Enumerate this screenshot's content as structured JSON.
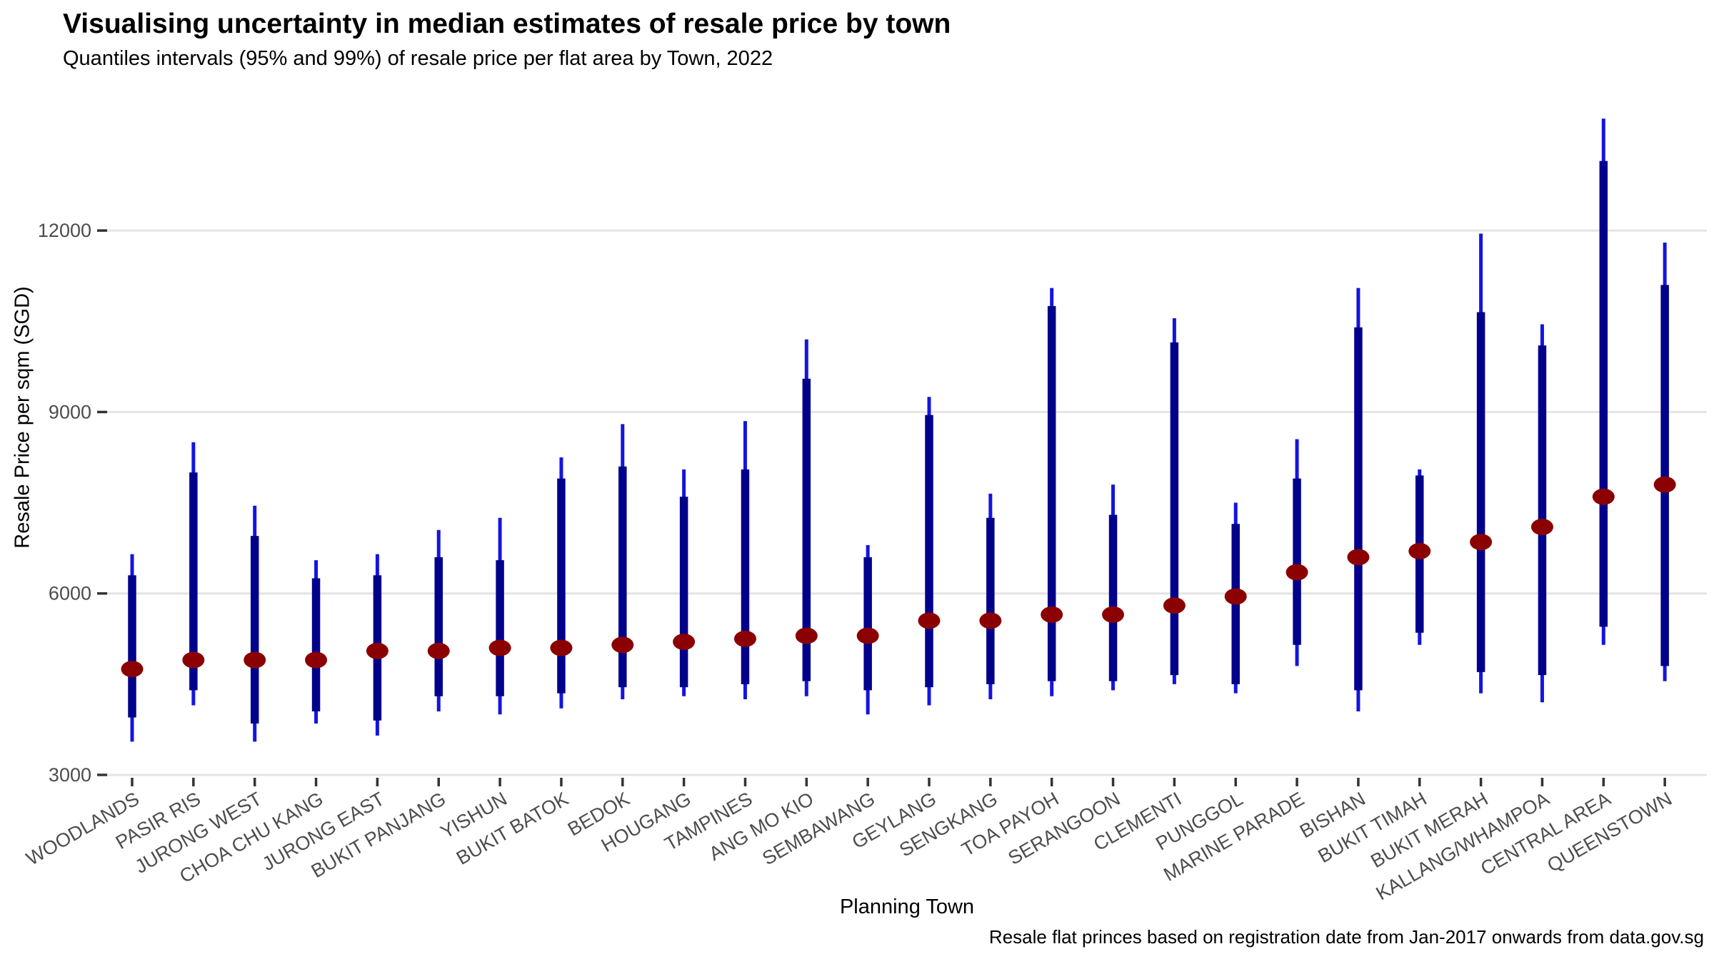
{
  "header": {
    "title": "Visualising uncertainty in median estimates of resale price by town",
    "subtitle": "Quantiles intervals (95% and 99%) of resale price per flat area by Town, 2022"
  },
  "caption": "Resale flat princes based on registration date from Jan-2017 onwards from data.gov.sg",
  "chart_data": {
    "type": "pointrange",
    "title": "Visualising uncertainty in median estimates of resale price by town",
    "subtitle": "Quantiles intervals (95% and 99%) of resale price per flat area by Town, 2022",
    "xlabel": "Planning Town",
    "ylabel": "Resale Price per sqm (SGD)",
    "legend": "none",
    "grid": "horizontal-only",
    "y_ticks": [
      3000,
      6000,
      9000,
      12000
    ],
    "ylim": [
      3000,
      14200
    ],
    "categories": [
      "WOODLANDS",
      "PASIR RIS",
      "JURONG WEST",
      "CHOA CHU KANG",
      "JURONG EAST",
      "BUKIT PANJANG",
      "YISHUN",
      "BUKIT BATOK",
      "BEDOK",
      "HOUGANG",
      "TAMPINES",
      "ANG MO KIO",
      "SEMBAWANG",
      "GEYLANG",
      "SENGKANG",
      "TOA PAYOH",
      "SERANGOON",
      "CLEMENTI",
      "PUNGGOL",
      "MARINE PARADE",
      "BISHAN",
      "BUKIT TIMAH",
      "BUKIT MERAH",
      "KALLANG/WHAMPOA",
      "CENTRAL AREA",
      "QUEENSTOWN"
    ],
    "series": [
      {
        "name": "99% quantile interval",
        "style": "thin",
        "color": "#1414E0",
        "low": [
          3550,
          4150,
          3550,
          3850,
          3650,
          4050,
          4000,
          4100,
          4250,
          4300,
          4250,
          4300,
          4000,
          4150,
          4250,
          4300,
          4400,
          4500,
          4350,
          4800,
          4050,
          5150,
          4350,
          4200,
          5150,
          4550
        ],
        "high": [
          6650,
          8500,
          7450,
          6550,
          6650,
          7050,
          7250,
          8250,
          8800,
          8050,
          8850,
          10200,
          6800,
          9250,
          7650,
          11050,
          7800,
          10550,
          7500,
          8550,
          11050,
          8050,
          11950,
          10450,
          13850,
          11800
        ]
      },
      {
        "name": "95% quantile interval",
        "style": "thick",
        "color": "#00008B",
        "low": [
          3950,
          4400,
          3850,
          4050,
          3900,
          4300,
          4300,
          4350,
          4450,
          4450,
          4500,
          4550,
          4400,
          4450,
          4500,
          4550,
          4550,
          4650,
          4500,
          5150,
          4400,
          5350,
          4700,
          4650,
          5450,
          4800
        ],
        "high": [
          6300,
          8000,
          6950,
          6250,
          6300,
          6600,
          6550,
          7900,
          8100,
          7600,
          8050,
          9550,
          6600,
          8950,
          7250,
          10750,
          7300,
          10150,
          7150,
          7900,
          10400,
          7950,
          10650,
          10100,
          13150,
          11100
        ]
      },
      {
        "name": "median estimate",
        "style": "point",
        "color": "#8B0000",
        "values": [
          4750,
          4900,
          4900,
          4900,
          5050,
          5050,
          5100,
          5100,
          5150,
          5200,
          5250,
          5300,
          5300,
          5550,
          5550,
          5650,
          5650,
          5800,
          5950,
          6350,
          6600,
          6700,
          6850,
          7100,
          7600,
          7800
        ]
      }
    ],
    "style": {
      "gridline_color": "#E4E4E4",
      "tick_color": "#333333",
      "axis_text_color": "#4D4D4D",
      "background": "#FFFFFF"
    }
  }
}
